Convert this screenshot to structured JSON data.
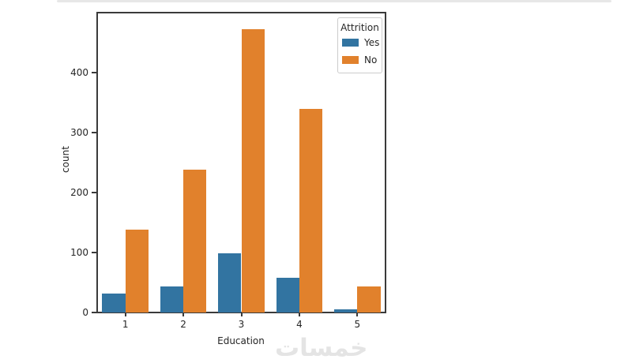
{
  "page": {
    "background": "#ffffff",
    "top_divider_color": "#e7e7e7"
  },
  "watermark": {
    "text": "خمسات",
    "color": "#e4e4e4"
  },
  "chart_data": {
    "type": "bar",
    "title": "",
    "xlabel": "Education",
    "ylabel": "count",
    "categories": [
      "1",
      "2",
      "3",
      "4",
      "5"
    ],
    "series": [
      {
        "name": "Yes",
        "color": "#3274a1",
        "values": [
          31,
          44,
          99,
          58,
          5
        ]
      },
      {
        "name": "No",
        "color": "#e1812c",
        "values": [
          139,
          238,
          473,
          340,
          43
        ]
      }
    ],
    "legend": {
      "title": "Attrition",
      "position": "upper-right",
      "entries": [
        "Yes",
        "No"
      ]
    },
    "ylim": [
      0,
      502
    ],
    "yticks": [
      0,
      100,
      200,
      300,
      400
    ],
    "grid": false,
    "bar_group_fraction": 0.8,
    "spine_color": "#3a3a3a",
    "tick_color": "#262626"
  }
}
